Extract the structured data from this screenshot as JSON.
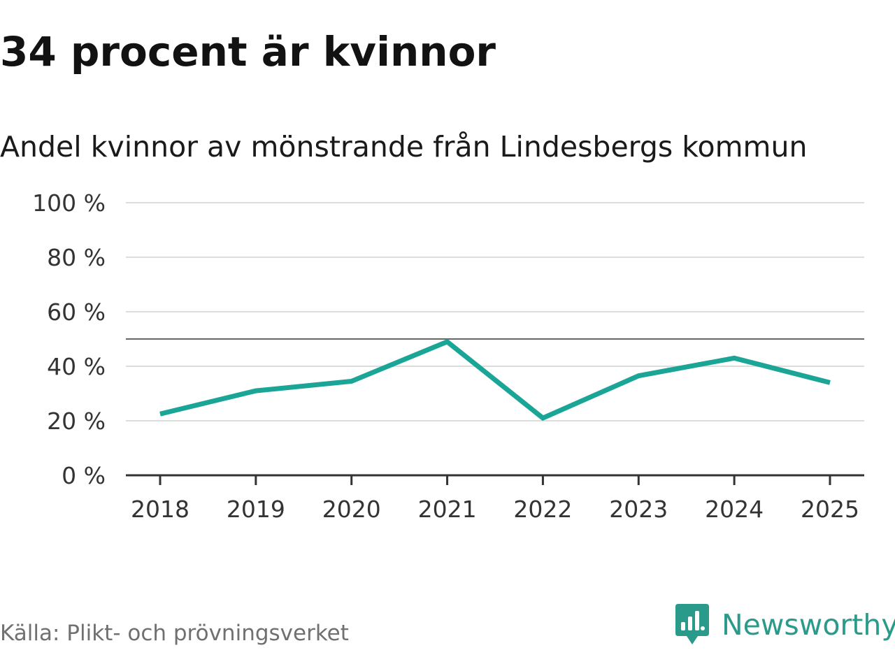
{
  "headline": "34 procent är kvinnor",
  "source": "Källa: Plikt- och prövningsverket",
  "brand": {
    "name": "Newsworthy",
    "icon": "newsworthy-logo-icon",
    "color": "#2a9a8a"
  },
  "colors": {
    "line": "#1aa596",
    "grid": "#dddddd",
    "reference": "#666666",
    "axis": "#333333"
  },
  "chart_data": {
    "type": "line",
    "title": "Andel kvinnor av mönstrande från Lindesbergs kommun",
    "xlabel": "",
    "ylabel": "",
    "categories": [
      "2018",
      "2019",
      "2020",
      "2021",
      "2022",
      "2023",
      "2024",
      "2025"
    ],
    "series": [
      {
        "name": "Andel kvinnor",
        "values": [
          22.5,
          31,
          34.5,
          49,
          21,
          36.5,
          43,
          34
        ]
      }
    ],
    "ylim": [
      0,
      100
    ],
    "yticks": [
      0,
      20,
      40,
      60,
      80,
      100
    ],
    "ytick_labels": [
      "0 %",
      "20 %",
      "40 %",
      "60 %",
      "80 %",
      "100 %"
    ],
    "reference_line": 50,
    "grid": true,
    "legend": "none"
  }
}
